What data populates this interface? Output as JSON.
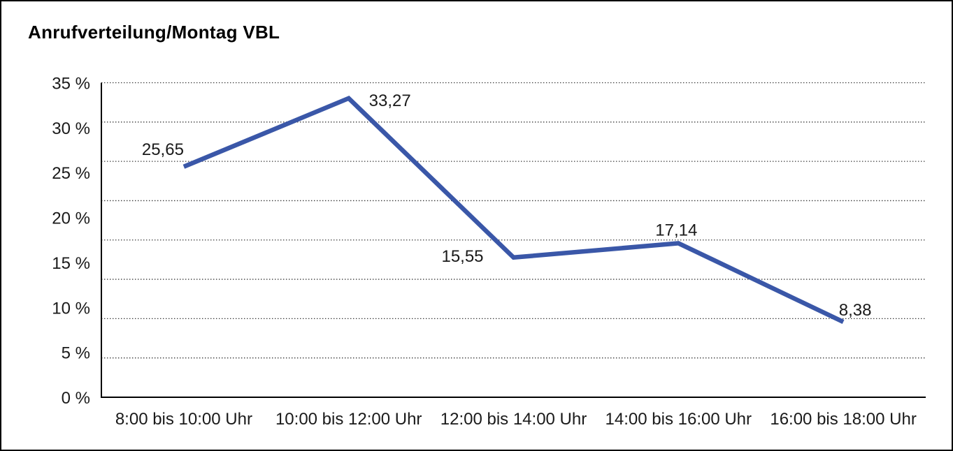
{
  "page": {
    "background_color": "#ffffff",
    "border_color": "#000000"
  },
  "chart": {
    "title": "Anrufverteilung/Montag VBL"
  },
  "chart_data": {
    "type": "line",
    "title": "Anrufverteilung/Montag VBL",
    "categories": [
      "8:00 bis 10:00 Uhr",
      "10:00 bis 12:00 Uhr",
      "12:00 bis 14:00 Uhr",
      "14:00 bis 16:00 Uhr",
      "16:00 bis 18:00 Uhr"
    ],
    "series": [
      {
        "name": "Anrufverteilung Montag VBL",
        "values": [
          25.65,
          33.27,
          15.55,
          17.14,
          8.38
        ],
        "value_labels": [
          "25,65",
          "33,27",
          "15,55",
          "17,14",
          "8,38"
        ],
        "color": "#3A57A8"
      }
    ],
    "xlabel": "",
    "ylabel": "",
    "ylim": [
      0,
      35
    ],
    "ytick_values": [
      35,
      30,
      25,
      20,
      15,
      10,
      5,
      0
    ],
    "ytick_labels": [
      "35 %",
      "30 %",
      "25 %",
      "20 %",
      "15 %",
      "10 %",
      "5 %",
      "0 %"
    ],
    "grid": "horizontal dotted",
    "grid_row_count": 8,
    "grid_color": "#333333",
    "axis_color": "#000000",
    "legend": "none",
    "line_width": 6.5
  }
}
